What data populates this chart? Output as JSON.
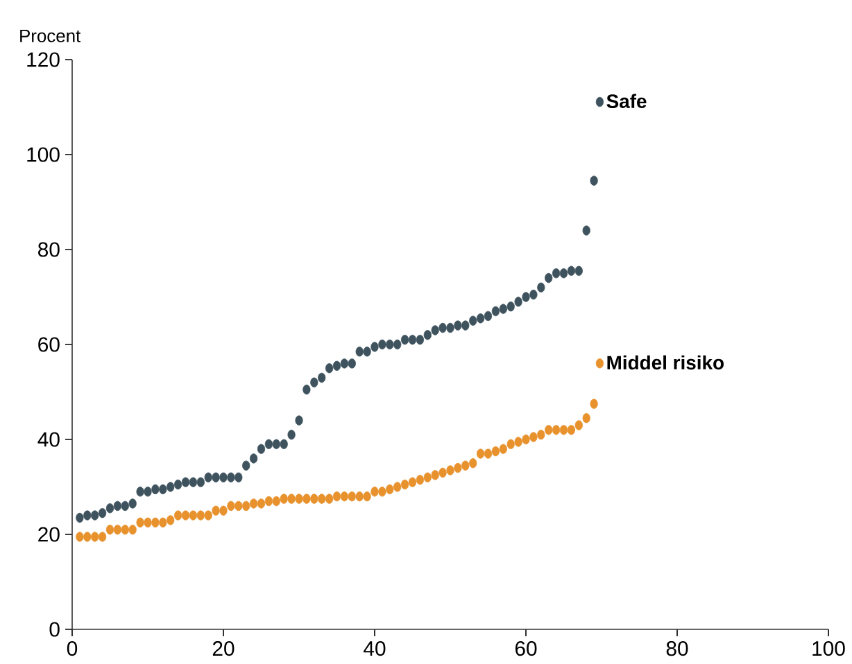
{
  "chart_data": {
    "type": "scatter",
    "ylabel": "Procent",
    "xlim": [
      0,
      100
    ],
    "ylim": [
      0,
      120
    ],
    "xticks": [
      0,
      20,
      40,
      60,
      80,
      100
    ],
    "yticks": [
      0,
      20,
      40,
      60,
      80,
      100,
      120
    ],
    "legend": "top right",
    "grid": false,
    "marker": "circle",
    "series": [
      {
        "name": "Safe",
        "color": "#3e535e",
        "x": [
          1,
          2,
          3,
          4,
          5,
          6,
          7,
          8,
          9,
          10,
          11,
          12,
          13,
          14,
          15,
          16,
          17,
          18,
          19,
          20,
          21,
          22,
          23,
          24,
          25,
          26,
          27,
          28,
          29,
          30,
          31,
          32,
          33,
          34,
          35,
          36,
          37,
          38,
          39,
          40,
          41,
          42,
          43,
          44,
          45,
          46,
          47,
          48,
          49,
          50,
          51,
          52,
          53,
          54,
          55,
          56,
          57,
          58,
          59,
          60,
          61,
          62,
          63,
          64,
          65,
          66,
          67,
          68,
          69
        ],
        "values": [
          23.5,
          24,
          24,
          24.5,
          25.5,
          26,
          26,
          26.5,
          29,
          29,
          29.5,
          29.5,
          30,
          30.5,
          31,
          31,
          31,
          32,
          32,
          32,
          32,
          32,
          34.5,
          36,
          38,
          39,
          39,
          39,
          41,
          44,
          50.5,
          52,
          53,
          55,
          55.5,
          56,
          56,
          58.5,
          58.5,
          59.5,
          60,
          60,
          60,
          61,
          61,
          61,
          62,
          63,
          63.5,
          63.5,
          64,
          64,
          65,
          65.5,
          66,
          67,
          67.5,
          68,
          69,
          70,
          70.5,
          72,
          74,
          75,
          75,
          75.5,
          75.5,
          84,
          94.5
        ]
      },
      {
        "name": "Middel risiko",
        "color": "#e8922e",
        "x": [
          1,
          2,
          3,
          4,
          5,
          6,
          7,
          8,
          9,
          10,
          11,
          12,
          13,
          14,
          15,
          16,
          17,
          18,
          19,
          20,
          21,
          22,
          23,
          24,
          25,
          26,
          27,
          28,
          29,
          30,
          31,
          32,
          33,
          34,
          35,
          36,
          37,
          38,
          39,
          40,
          41,
          42,
          43,
          44,
          45,
          46,
          47,
          48,
          49,
          50,
          51,
          52,
          53,
          54,
          55,
          56,
          57,
          58,
          59,
          60,
          61,
          62,
          63,
          64,
          65,
          66,
          67,
          68,
          69
        ],
        "values": [
          19.5,
          19.5,
          19.5,
          19.5,
          21,
          21,
          21,
          21,
          22.5,
          22.5,
          22.5,
          22.5,
          23,
          24,
          24,
          24,
          24,
          24,
          25,
          25,
          26,
          26,
          26,
          26.5,
          26.5,
          27,
          27,
          27.5,
          27.5,
          27.5,
          27.5,
          27.5,
          27.5,
          27.5,
          28,
          28,
          28,
          28,
          28,
          29,
          29,
          29.5,
          30,
          30.5,
          31,
          31.5,
          32,
          32.5,
          33,
          33.5,
          34,
          34.5,
          35,
          37,
          37,
          37.5,
          38,
          39,
          39.5,
          40,
          40.5,
          41,
          42,
          42,
          42,
          42,
          43,
          44.5,
          47.5
        ]
      }
    ]
  }
}
